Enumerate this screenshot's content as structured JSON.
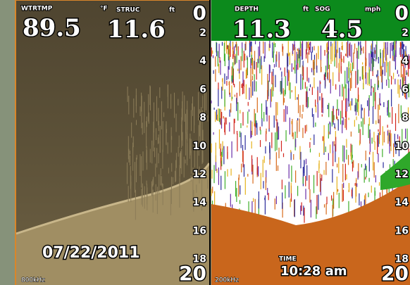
{
  "left_panel": {
    "labels": {
      "temp_label": "WTRTMP",
      "temp_unit": "°F",
      "struc_label": "STRUC",
      "struc_unit": "ft"
    },
    "readouts": {
      "temp": "89.5",
      "struc": "11.6"
    },
    "depth_scale": [
      "0",
      "2",
      "4",
      "6",
      "8",
      "10",
      "12",
      "14",
      "16",
      "18",
      "20"
    ],
    "date": "07/22/2011",
    "frequency": "800kHz"
  },
  "right_panel": {
    "labels": {
      "depth_label": "DEPTH",
      "depth_unit": "ft",
      "sog_label": "SOG",
      "sog_unit": "mph"
    },
    "readouts": {
      "depth": "11.3",
      "sog": "4.5"
    },
    "depth_scale": [
      "0",
      "2",
      "4",
      "6",
      "8",
      "10",
      "12",
      "14",
      "16",
      "18",
      "20"
    ],
    "time_label": "TIME",
    "time": "10:28 am",
    "frequency": "200kHz"
  }
}
